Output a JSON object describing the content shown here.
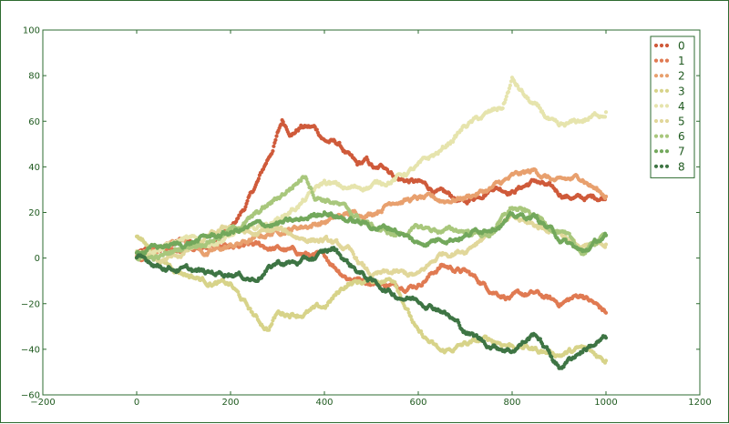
{
  "chart_data": {
    "type": "scatter",
    "title": "",
    "xlabel": "",
    "ylabel": "",
    "xlim": [
      -200,
      1200
    ],
    "ylim": [
      -60,
      100
    ],
    "xticks": [
      -200,
      0,
      200,
      400,
      600,
      800,
      1000,
      1200
    ],
    "yticks": [
      -60,
      -40,
      -20,
      0,
      20,
      40,
      60,
      80,
      100
    ],
    "grid": false,
    "legend_position": "top-right",
    "series": [
      {
        "name": "0",
        "color": "#cf5a3a",
        "x": [
          0,
          50,
          100,
          150,
          200,
          230,
          260,
          290,
          310,
          330,
          350,
          380,
          400,
          430,
          450,
          470,
          490,
          510,
          530,
          560,
          600,
          650,
          700,
          730,
          760,
          800,
          850,
          900,
          950,
          1000
        ],
        "y": [
          2,
          3,
          8,
          5,
          12,
          22,
          34,
          48,
          60,
          55,
          58,
          57,
          52,
          50,
          45,
          40,
          42,
          38,
          40,
          35,
          33,
          28,
          24,
          28,
          32,
          30,
          34,
          28,
          26,
          27
        ]
      },
      {
        "name": "1",
        "color": "#e07a52",
        "x": [
          0,
          50,
          100,
          150,
          200,
          250,
          300,
          350,
          400,
          450,
          500,
          550,
          600,
          650,
          700,
          750,
          800,
          850,
          900,
          950,
          1000
        ],
        "y": [
          0,
          5,
          2,
          6,
          3,
          5,
          4,
          2,
          0,
          -8,
          -10,
          -12,
          -11,
          -3,
          -6,
          -13,
          -17,
          -16,
          -20,
          -16,
          -24
        ]
      },
      {
        "name": "2",
        "color": "#e8a06e",
        "x": [
          0,
          50,
          100,
          150,
          200,
          250,
          300,
          350,
          400,
          450,
          500,
          550,
          600,
          650,
          700,
          750,
          800,
          850,
          900,
          950,
          1000
        ],
        "y": [
          1,
          4,
          9,
          2,
          5,
          8,
          12,
          14,
          16,
          19,
          20,
          26,
          26,
          25,
          27,
          30,
          35,
          38,
          33,
          35,
          27
        ]
      },
      {
        "name": "3",
        "color": "#d7d389",
        "x": [
          0,
          50,
          100,
          150,
          200,
          230,
          260,
          280,
          300,
          350,
          400,
          450,
          500,
          550,
          600,
          650,
          700,
          750,
          800,
          850,
          900,
          950,
          1000
        ],
        "y": [
          10,
          -1,
          -6,
          -10,
          -12,
          -20,
          -28,
          -31,
          -24,
          -24,
          -22,
          -11,
          -10,
          -9,
          -33,
          -42,
          -38,
          -36,
          -38,
          -40,
          -42,
          -40,
          -45
        ]
      },
      {
        "name": "4",
        "color": "#e6e4ad",
        "x": [
          0,
          50,
          100,
          150,
          200,
          250,
          300,
          350,
          400,
          450,
          500,
          550,
          600,
          650,
          700,
          750,
          780,
          800,
          830,
          870,
          900,
          950,
          1000
        ],
        "y": [
          3,
          5,
          8,
          6,
          10,
          12,
          17,
          24,
          33,
          30,
          32,
          35,
          40,
          47,
          58,
          63,
          66,
          78,
          70,
          62,
          56,
          60,
          64
        ]
      },
      {
        "name": "5",
        "color": "#e1d79a",
        "x": [
          0,
          50,
          100,
          150,
          200,
          250,
          300,
          350,
          400,
          450,
          500,
          550,
          600,
          650,
          700,
          750,
          800,
          850,
          900,
          950,
          1000
        ],
        "y": [
          1,
          -2,
          2,
          8,
          14,
          10,
          12,
          9,
          8,
          3,
          -8,
          -7,
          -8,
          2,
          4,
          12,
          17,
          14,
          12,
          4,
          6
        ]
      },
      {
        "name": "6",
        "color": "#a8c77c",
        "x": [
          0,
          50,
          100,
          150,
          200,
          250,
          300,
          340,
          360,
          380,
          420,
          460,
          500,
          550,
          600,
          650,
          700,
          750,
          800,
          850,
          900,
          950,
          1000
        ],
        "y": [
          0,
          0,
          5,
          8,
          12,
          18,
          26,
          33,
          37,
          28,
          25,
          19,
          14,
          10,
          13,
          12,
          12,
          10,
          22,
          18,
          12,
          2,
          10
        ]
      },
      {
        "name": "7",
        "color": "#73a85c",
        "x": [
          0,
          50,
          100,
          150,
          200,
          250,
          300,
          350,
          400,
          450,
          500,
          550,
          600,
          650,
          700,
          750,
          800,
          850,
          900,
          950,
          1000
        ],
        "y": [
          3,
          5,
          6,
          9,
          11,
          14,
          15,
          16,
          21,
          17,
          14,
          13,
          6,
          9,
          10,
          14,
          18,
          18,
          9,
          2,
          10
        ]
      },
      {
        "name": "8",
        "color": "#3e7544",
        "x": [
          0,
          50,
          100,
          150,
          200,
          250,
          300,
          350,
          380,
          420,
          450,
          500,
          550,
          600,
          650,
          700,
          750,
          800,
          850,
          900,
          950,
          1000
        ],
        "y": [
          0,
          -3,
          -5,
          -7,
          -6,
          -9,
          -2,
          -2,
          0,
          4,
          -2,
          -10,
          -16,
          -18,
          -22,
          -32,
          -38,
          -40,
          -33,
          -48,
          -40,
          -35
        ]
      }
    ]
  }
}
